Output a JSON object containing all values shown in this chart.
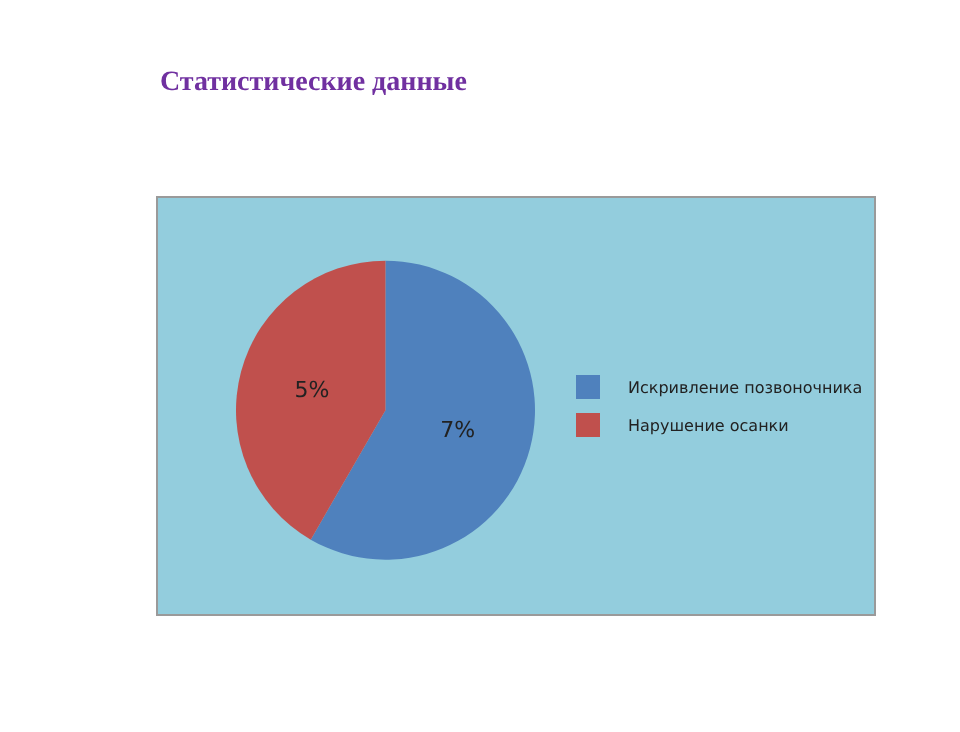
{
  "chart_data": {
    "type": "pie",
    "title": "Статистические данные",
    "categories": [
      "Искривление позвоночника",
      "Нарушение осанки"
    ],
    "values": [
      7,
      5
    ],
    "value_labels": [
      "7%",
      "5%"
    ],
    "colors": [
      "#4f81bd",
      "#c0504d"
    ],
    "legend": "right"
  }
}
